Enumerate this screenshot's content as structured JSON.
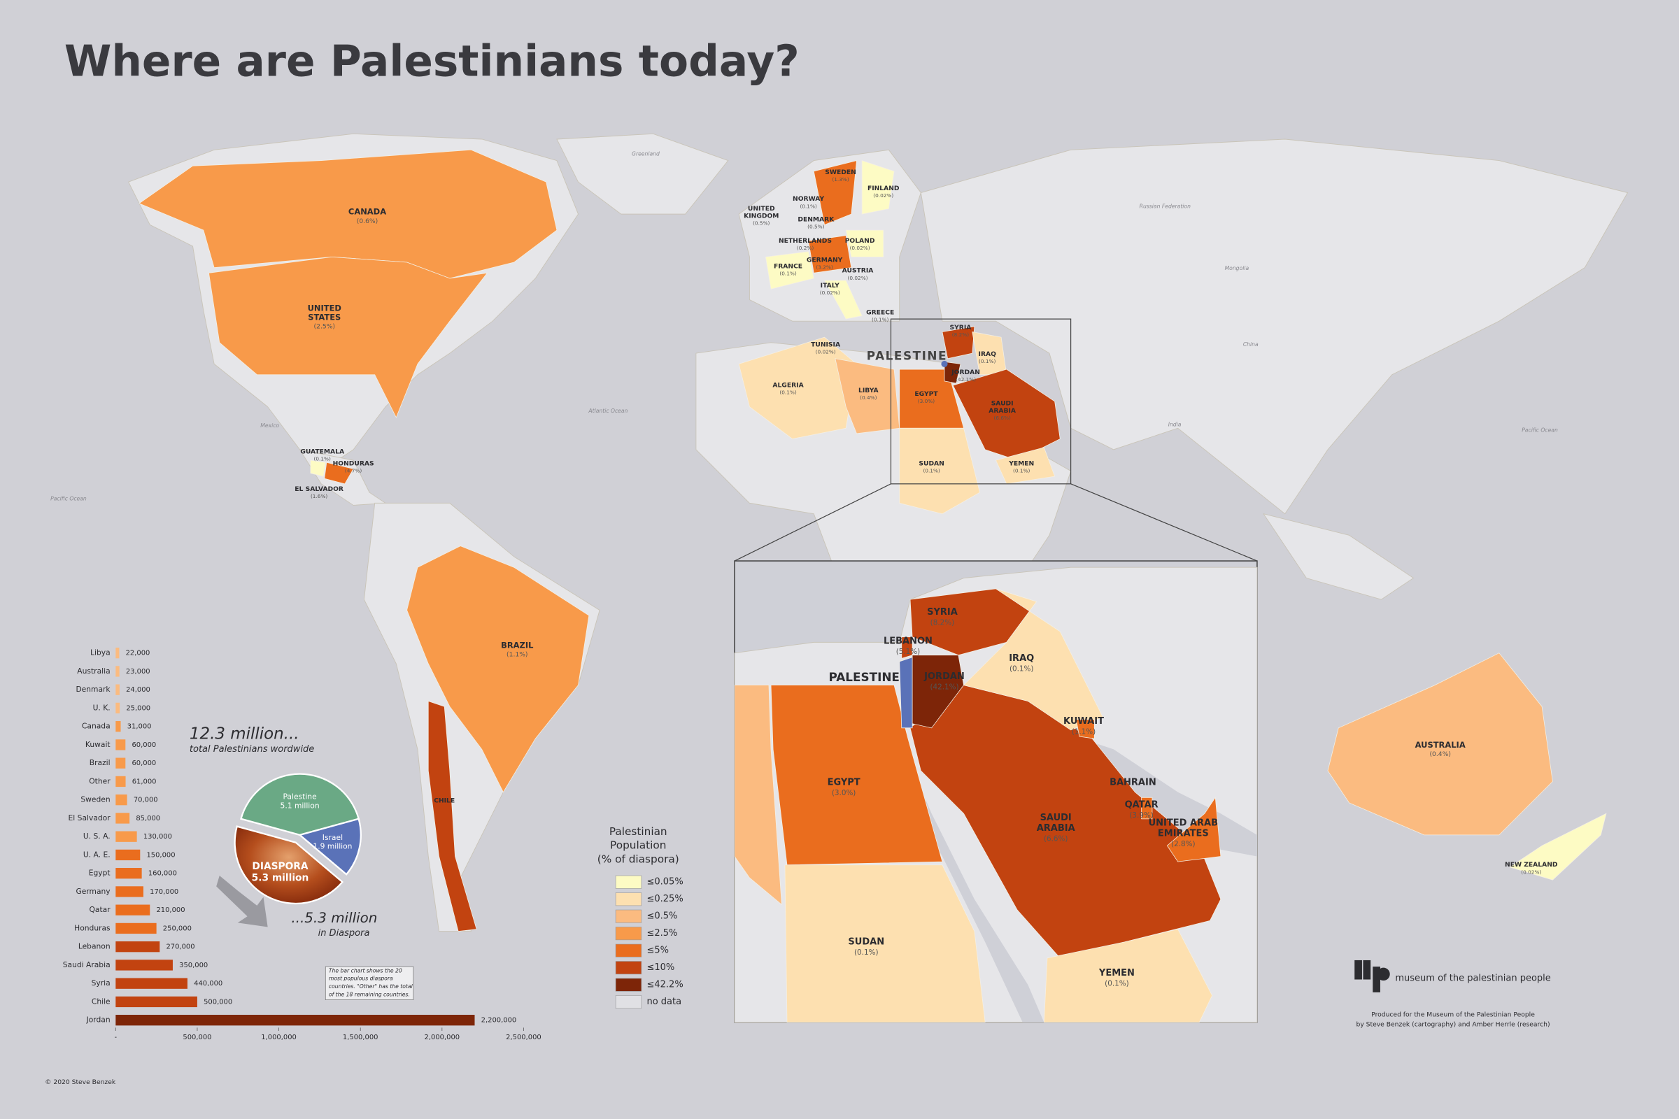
{
  "title": "Where are Palestinians today?",
  "map": {
    "labels": [
      {
        "name": [
          "CANADA"
        ],
        "share": "(0.6%)"
      },
      {
        "name": [
          "UNITED",
          "STATES"
        ],
        "share": "(2.5%)"
      },
      {
        "name": [
          "BRAZIL"
        ],
        "share": "(1.1%)"
      },
      {
        "name": [
          "CHILE"
        ]
      },
      {
        "name": [
          "GUATEMALA"
        ],
        "share": "(0.1%)"
      },
      {
        "name": [
          "HONDURAS"
        ],
        "share": "(4.7%)"
      },
      {
        "name": [
          "EL SALVADOR"
        ],
        "share": "(1.6%)"
      },
      {
        "name": [
          "SWEDEN"
        ],
        "share": "(1.3%)"
      },
      {
        "name": [
          "FINLAND"
        ],
        "share": "(0.02%)"
      },
      {
        "name": [
          "NORWAY"
        ],
        "share": "(0.1%)"
      },
      {
        "name": [
          "UNITED",
          "KINGDOM"
        ],
        "share": "(0.5%)"
      },
      {
        "name": [
          "DENMARK"
        ],
        "share": "(0.5%)"
      },
      {
        "name": [
          "NETHERLANDS"
        ],
        "share": "(0.2%)"
      },
      {
        "name": [
          "POLAND"
        ],
        "share": "(0.02%)"
      },
      {
        "name": [
          "GERMANY"
        ],
        "share": "(3.2%)"
      },
      {
        "name": [
          "FRANCE"
        ],
        "share": "(0.1%)"
      },
      {
        "name": [
          "AUSTRIA"
        ],
        "share": "(0.02%)"
      },
      {
        "name": [
          "ITALY"
        ],
        "share": "(0.02%)"
      },
      {
        "name": [
          "GREECE"
        ],
        "share": "(0.1%)"
      },
      {
        "name": [
          "TUNISIA"
        ],
        "share": "(0.02%)"
      },
      {
        "name": [
          "ALGERIA"
        ],
        "share": "(0.1%)"
      },
      {
        "name": [
          "LIBYA"
        ],
        "share": "(0.4%)"
      },
      {
        "name": [
          "EGYPT"
        ],
        "share": "(3.0%)"
      },
      {
        "name": [
          "SYRIA"
        ],
        "share": "(8.2%)"
      },
      {
        "name": [
          "IRAQ"
        ],
        "share": "(0.1%)"
      },
      {
        "name": [
          "JORDAN"
        ],
        "share": "(42.1%)"
      },
      {
        "name": [
          "SAUDI",
          "ARABIA"
        ],
        "share": "(6.6%)"
      },
      {
        "name": [
          "SUDAN"
        ],
        "share": "(0.1%)"
      },
      {
        "name": [
          "YEMEN"
        ],
        "share": "(0.1%)"
      },
      {
        "name": [
          "AUSTRALIA"
        ],
        "share": "(0.4%)"
      },
      {
        "name": [
          "NEW ZEALAND"
        ],
        "share": "(0.02%)"
      }
    ],
    "palestine": "PALESTINE",
    "places": [
      "Greenland",
      "Russian Federation",
      "China",
      "India",
      "Mongolia",
      "Pacific Ocean",
      "Pacific Ocean",
      "Atlantic Ocean",
      "Mexico"
    ]
  },
  "inset": {
    "labels": [
      {
        "name": [
          "SYRIA"
        ],
        "share": "(8.2%)"
      },
      {
        "name": [
          "LEBANON"
        ],
        "share": "(5.1%)"
      },
      {
        "name": [
          "IRAQ"
        ],
        "share": "(0.1%)"
      },
      {
        "name": [
          "PALESTINE"
        ]
      },
      {
        "name": [
          "JORDAN"
        ],
        "share": "(42.1%)"
      },
      {
        "name": [
          "KUWAIT"
        ],
        "share": "(1.1%)"
      },
      {
        "name": [
          "EGYPT"
        ],
        "share": "(3.0%)"
      },
      {
        "name": [
          "BAHRAIN"
        ]
      },
      {
        "name": [
          "QATAR"
        ],
        "share": "(3.9%)"
      },
      {
        "name": [
          "UNITED ARAB",
          "EMIRATES"
        ],
        "share": "(2.8%)"
      },
      {
        "name": [
          "SAUDI",
          "ARABIA"
        ],
        "share": "(6.6%)"
      },
      {
        "name": [
          "SUDAN"
        ],
        "share": "(0.1%)"
      },
      {
        "name": [
          "YEMEN"
        ],
        "share": "(0.1%)"
      }
    ]
  },
  "legend": {
    "title": [
      "Palestinian",
      "Population",
      "(% of diaspora)"
    ],
    "items": [
      {
        "label": "≤0.05%",
        "color": "#fdfbc4"
      },
      {
        "label": "≤0.25%",
        "color": "#fde0b0"
      },
      {
        "label": "≤0.5%",
        "color": "#fbbb80"
      },
      {
        "label": "≤2.5%",
        "color": "#f89a4a"
      },
      {
        "label": "≤5%",
        "color": "#ea6d1e"
      },
      {
        "label": "≤10%",
        "color": "#c24310"
      },
      {
        "label": "≤42.2%",
        "color": "#7d2508"
      },
      {
        "label": "no data",
        "color": "#e0e0e4"
      }
    ]
  },
  "chart_data": [
    {
      "type": "bar",
      "orientation": "horizontal",
      "categories": [
        "Libya",
        "Australia",
        "Denmark",
        "U. K.",
        "Canada",
        "Kuwait",
        "Brazil",
        "Other",
        "Sweden",
        "El Salvador",
        "U. S. A.",
        "U. A. E.",
        "Egypt",
        "Germany",
        "Qatar",
        "Honduras",
        "Lebanon",
        "Saudi Arabia",
        "Syria",
        "Chile",
        "Jordan"
      ],
      "values": [
        22000,
        23000,
        24000,
        25000,
        31000,
        60000,
        60000,
        61000,
        70000,
        85000,
        130000,
        150000,
        160000,
        170000,
        210000,
        250000,
        270000,
        350000,
        440000,
        500000,
        2200000
      ],
      "value_labels": [
        "22,000",
        "23,000",
        "24,000",
        "25,000",
        "31,000",
        "60,000",
        "60,000",
        "61,000",
        "70,000",
        "85,000",
        "130,000",
        "150,000",
        "160,000",
        "170,000",
        "210,000",
        "250,000",
        "270,000",
        "350,000",
        "440,000",
        "500,000",
        "2,200,000"
      ],
      "colors": [
        "#fbbb80",
        "#fbbb80",
        "#fbbb80",
        "#fbbb80",
        "#f89a4a",
        "#f89a4a",
        "#f89a4a",
        "#f89a4a",
        "#f89a4a",
        "#f89a4a",
        "#f89a4a",
        "#ea6d1e",
        "#ea6d1e",
        "#ea6d1e",
        "#ea6d1e",
        "#ea6d1e",
        "#c24310",
        "#c24310",
        "#c24310",
        "#c24310",
        "#7d2508"
      ],
      "xlim": [
        0,
        2500000
      ],
      "xticks": [
        {
          "value": 0,
          "label": "-"
        },
        {
          "value": 500000,
          "label": "500,000"
        },
        {
          "value": 1000000,
          "label": "1,000,000"
        },
        {
          "value": 1500000,
          "label": "1,500,000"
        },
        {
          "value": 2000000,
          "label": "2,000,000"
        },
        {
          "value": 2500000,
          "label": "2,500,000"
        }
      ],
      "note": [
        "The bar chart shows the 20",
        "most populous diaspora",
        "countries. \"Other\" has the total",
        "of the 18 remaining countries."
      ]
    },
    {
      "type": "pie",
      "title": "12.3 million...",
      "subtitle": "total Palestinians wordwide",
      "categories": [
        "Palestine",
        "Israel",
        "DIASPORA"
      ],
      "values": [
        5.1,
        1.9,
        5.3
      ],
      "value_labels": [
        "5.1 million",
        "1.9 million",
        "5.3 million"
      ],
      "colors": [
        "#6aa985",
        "#5a72b8",
        "#a8441a"
      ],
      "annotation": [
        "...5.3 million",
        "in Diaspora"
      ]
    }
  ],
  "credits": {
    "logo": "museum of the palestinian people",
    "produced": [
      "Produced for the Museum of the Palestinian People",
      "by Steve Benzek (cartography) and Amber Herrle (research)"
    ],
    "copyright": "© 2020 Steve Benzek"
  }
}
